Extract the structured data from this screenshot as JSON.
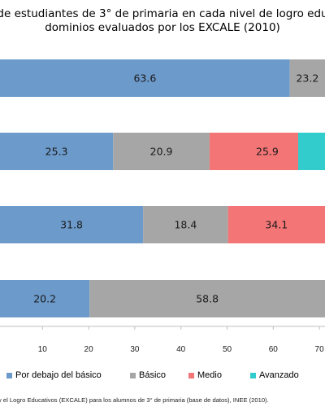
{
  "title": {
    "line1": "de estudiantes de 3° de primaria en cada nivel de logro edu",
    "line2": "dominios evaluados por los EXCALE (2010)"
  },
  "source": "y el Logro Educativos (EXCALE) para los alumnos de 3° de primaria (base de datos), INEE (2010).",
  "colors": {
    "Por debajo del básico": "#6c9acb",
    "Básico": "#a6a6a6",
    "Medio": "#f37576",
    "Avanzado": "#33cccc"
  },
  "chart_data": {
    "type": "bar",
    "orientation": "horizontal",
    "stacked": true,
    "xlim": [
      0,
      70
    ],
    "xticks": [
      10,
      20,
      30,
      40,
      50,
      60,
      70
    ],
    "series": [
      {
        "name": "Por debajo del básico",
        "values": [
          63.6,
          25.3,
          31.8,
          20.2
        ]
      },
      {
        "name": "Básico",
        "values": [
          23.2,
          20.9,
          18.4,
          58.8
        ]
      },
      {
        "name": "Medio",
        "values": [
          null,
          25.9,
          34.1,
          null
        ]
      },
      {
        "name": "Avanzado",
        "values": [
          null,
          null,
          null,
          null
        ]
      }
    ],
    "data_labels": [
      [
        "63.6",
        "23.2",
        "",
        ""
      ],
      [
        "25.3",
        "20.9",
        "25.9",
        ""
      ],
      [
        "31.8",
        "18.4",
        "34.1",
        ""
      ],
      [
        "20.2",
        "58.8",
        "",
        ""
      ]
    ]
  }
}
